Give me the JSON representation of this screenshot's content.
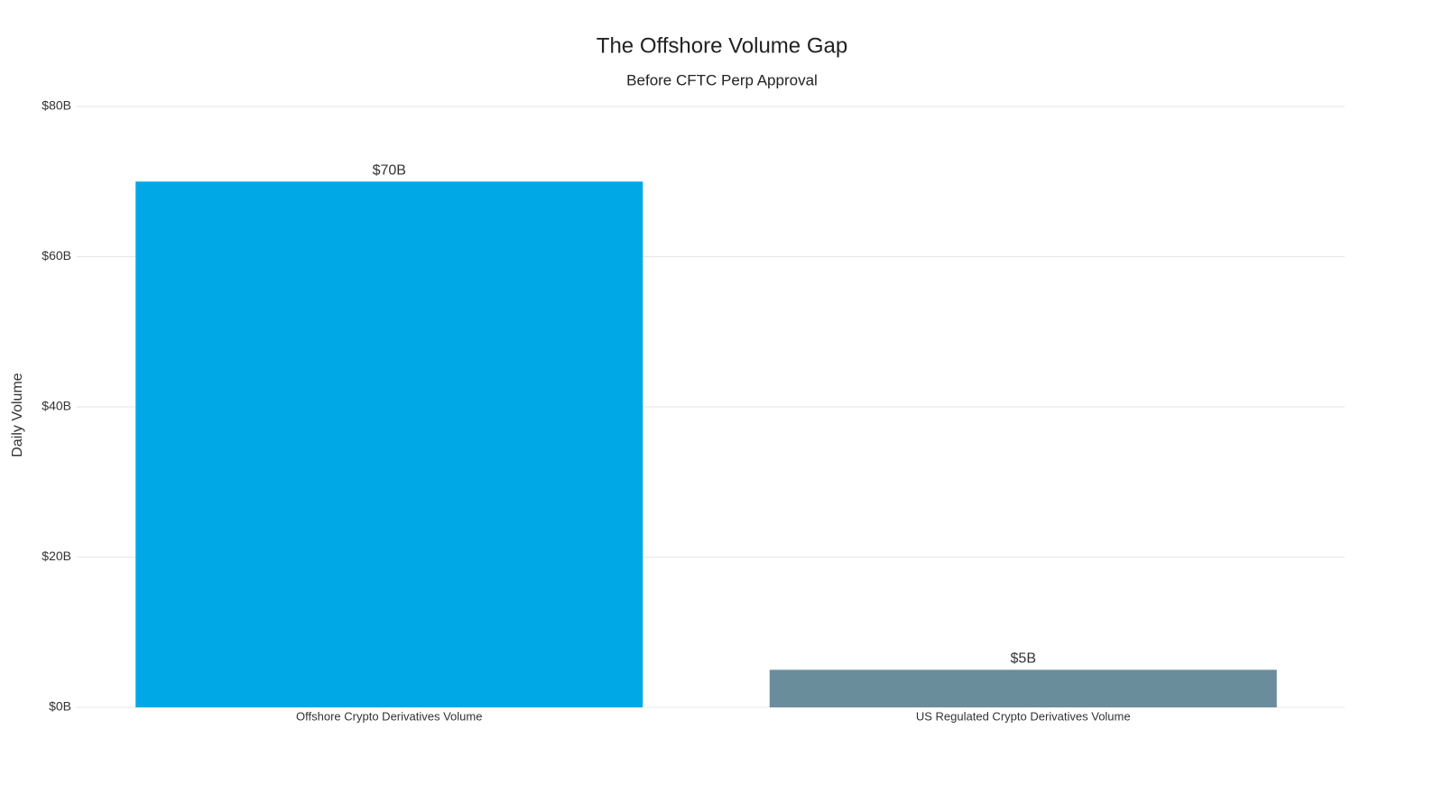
{
  "chart_data": {
    "type": "bar",
    "title": "The Offshore Volume Gap",
    "subtitle": "Before CFTC Perp Approval",
    "y_label": "Daily Volume",
    "categories": [
      "Offshore Crypto Derivatives Volume",
      "US Regulated Crypto Derivatives Volume"
    ],
    "values": [
      70,
      5
    ],
    "value_labels": [
      "$70B",
      "$5B"
    ],
    "colors": [
      "#00a8e6",
      "#6a8d9c"
    ],
    "ylim": [
      0,
      80
    ],
    "yticks": [
      {
        "value": 0,
        "label": "$0B"
      },
      {
        "value": 20,
        "label": "$20B"
      },
      {
        "value": 40,
        "label": "$40B"
      },
      {
        "value": 60,
        "label": "$60B"
      },
      {
        "value": 80,
        "label": "$80B"
      }
    ],
    "grid": true
  }
}
